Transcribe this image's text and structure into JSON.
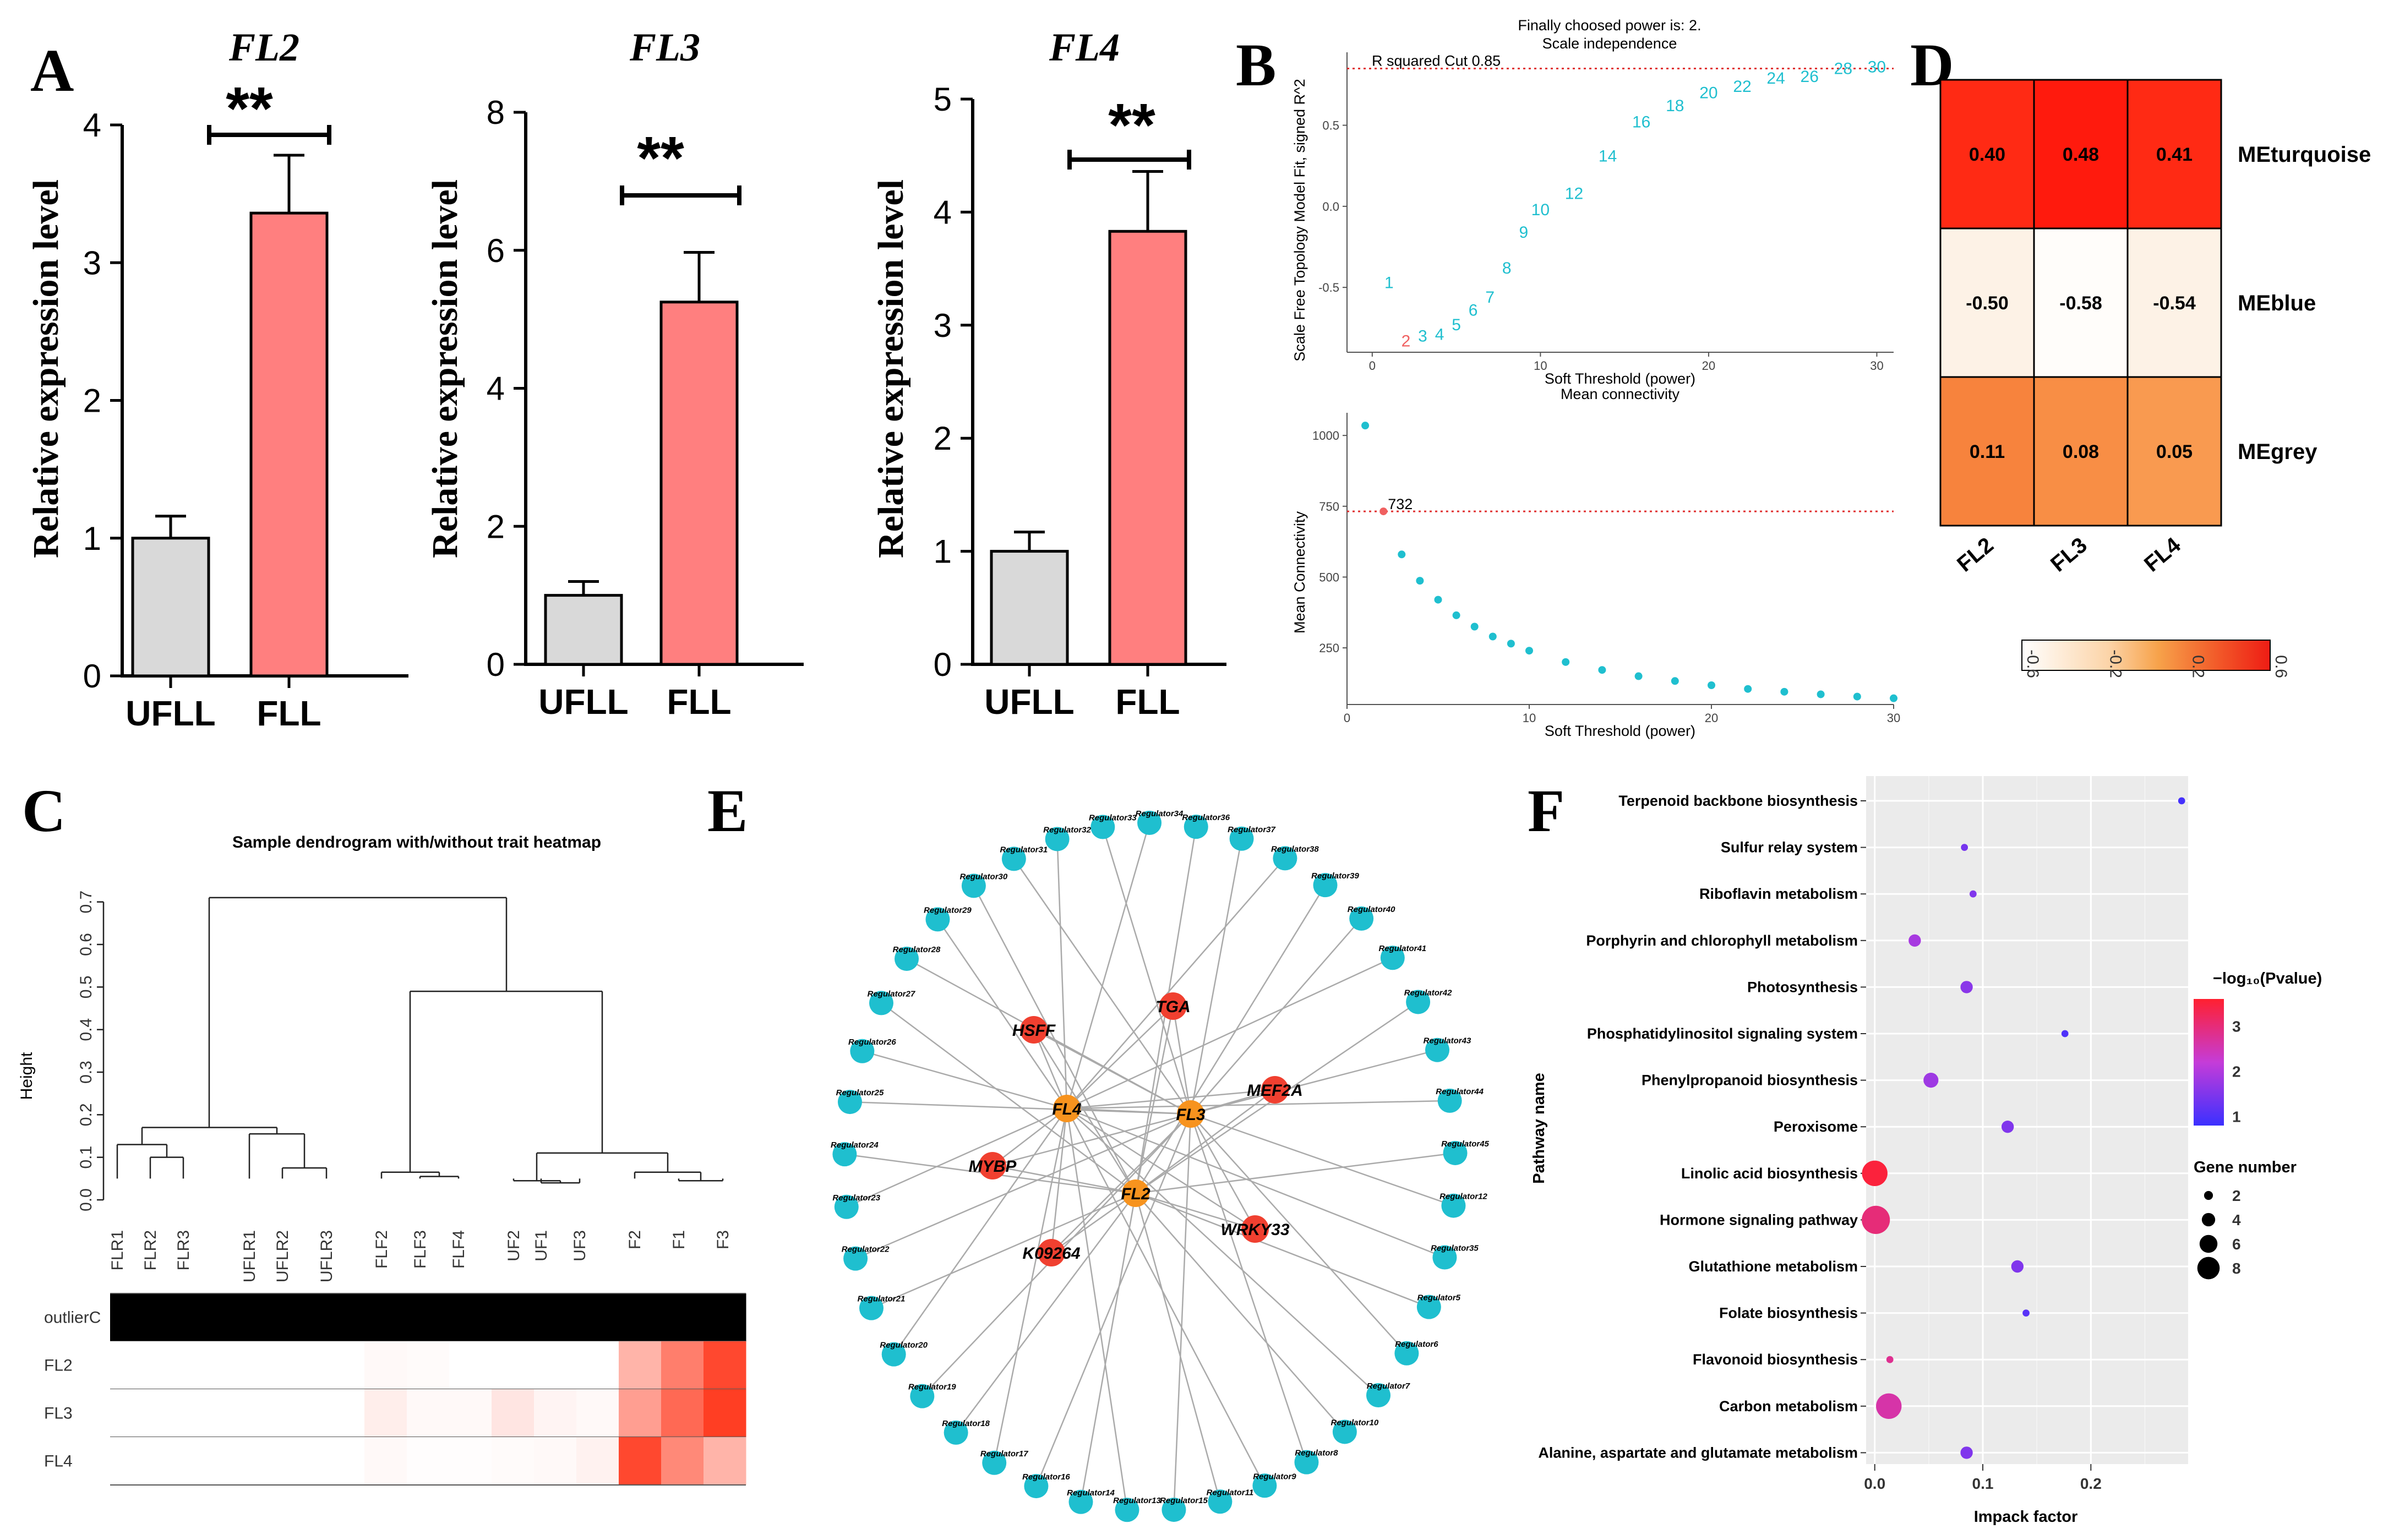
{
  "panels": {
    "A": "A",
    "B": "B",
    "C": "C",
    "D": "D",
    "E": "E",
    "F": "F"
  },
  "colors": {
    "ufll": "#d9d9d9",
    "fll": "#ff7f7f",
    "teal": "#1fbfcf",
    "hub_red": "#f04030",
    "hub_orange": "#f7931e",
    "edge": "#aaaaaa"
  },
  "panel_a": {
    "ylabel": "Relative expression level",
    "significance": "**",
    "charts": [
      {
        "title": "FL2",
        "type": "bar",
        "categories": [
          "UFLL",
          "FLL"
        ],
        "values": [
          1.0,
          3.36
        ],
        "errors": [
          0.16,
          0.42
        ],
        "ylim": [
          0,
          4
        ],
        "yticks": [
          "0",
          "1",
          "2",
          "3",
          "4"
        ]
      },
      {
        "title": "FL3",
        "type": "bar",
        "categories": [
          "UFLL",
          "FLL"
        ],
        "values": [
          1.0,
          5.25
        ],
        "errors": [
          0.2,
          0.72
        ],
        "ylim": [
          0,
          8
        ],
        "yticks": [
          "0",
          "2",
          "4",
          "6",
          "8"
        ]
      },
      {
        "title": "FL4",
        "type": "bar",
        "categories": [
          "UFLL",
          "FLL"
        ],
        "values": [
          1.0,
          3.83
        ],
        "errors": [
          0.17,
          0.53
        ],
        "ylim": [
          0,
          5
        ],
        "yticks": [
          "0",
          "1",
          "2",
          "3",
          "4",
          "5"
        ]
      }
    ]
  },
  "chart_data": [
    {
      "type": "scatter",
      "title": "Finally choosed power is: 2.",
      "subtitle": "Scale independence",
      "xlabel": "Soft Threshold (power)",
      "ylabel": "Scale Free Topology Model Fit, signed R^2",
      "xlim": [
        -1.5,
        31
      ],
      "ylim": [
        -0.9,
        0.95
      ],
      "xticks": [
        "0",
        "10",
        "20",
        "30"
      ],
      "yticks": [
        "-0.5",
        "0.0",
        "0.5"
      ],
      "cutoff": 0.85,
      "cutoff_label": "R squared Cut 0.85",
      "chosen": 2,
      "points": [
        {
          "x": 1,
          "y": -0.47
        },
        {
          "x": 2,
          "y": -0.83
        },
        {
          "x": 3,
          "y": -0.8
        },
        {
          "x": 4,
          "y": -0.79
        },
        {
          "x": 5,
          "y": -0.73
        },
        {
          "x": 6,
          "y": -0.64
        },
        {
          "x": 7,
          "y": -0.56
        },
        {
          "x": 8,
          "y": -0.38
        },
        {
          "x": 9,
          "y": -0.16
        },
        {
          "x": 10,
          "y": -0.02
        },
        {
          "x": 12,
          "y": 0.08
        },
        {
          "x": 14,
          "y": 0.31
        },
        {
          "x": 16,
          "y": 0.52
        },
        {
          "x": 18,
          "y": 0.62
        },
        {
          "x": 20,
          "y": 0.7
        },
        {
          "x": 22,
          "y": 0.74
        },
        {
          "x": 24,
          "y": 0.79
        },
        {
          "x": 26,
          "y": 0.8
        },
        {
          "x": 28,
          "y": 0.85
        },
        {
          "x": 30,
          "y": 0.86
        }
      ]
    },
    {
      "type": "scatter",
      "title": "Mean connectivity",
      "xlabel": "Soft Threshold (power)",
      "ylabel": "Mean Connectivity",
      "xlim": [
        0,
        30
      ],
      "ylim": [
        50,
        1080
      ],
      "xticks": [
        "0",
        "10",
        "20",
        "30"
      ],
      "yticks": [
        "250",
        "500",
        "750",
        "1000"
      ],
      "cutoff": 732,
      "cutoff_label": "732",
      "points": [
        {
          "x": 1,
          "y": 1035
        },
        {
          "x": 2,
          "y": 732
        },
        {
          "x": 3,
          "y": 580
        },
        {
          "x": 4,
          "y": 487
        },
        {
          "x": 5,
          "y": 420
        },
        {
          "x": 6,
          "y": 365
        },
        {
          "x": 7,
          "y": 325
        },
        {
          "x": 8,
          "y": 290
        },
        {
          "x": 9,
          "y": 265
        },
        {
          "x": 10,
          "y": 240
        },
        {
          "x": 12,
          "y": 200
        },
        {
          "x": 14,
          "y": 172
        },
        {
          "x": 16,
          "y": 150
        },
        {
          "x": 18,
          "y": 133
        },
        {
          "x": 20,
          "y": 118
        },
        {
          "x": 22,
          "y": 105
        },
        {
          "x": 24,
          "y": 95
        },
        {
          "x": 26,
          "y": 86
        },
        {
          "x": 28,
          "y": 78
        },
        {
          "x": 30,
          "y": 72
        }
      ]
    },
    {
      "type": "heatmap",
      "rows": [
        "MEturquoise",
        "MEblue",
        "MEgrey"
      ],
      "columns": [
        "FL2",
        "FL3",
        "FL4"
      ],
      "values": [
        [
          0.4,
          0.48,
          0.41
        ],
        [
          -0.5,
          -0.58,
          -0.54
        ],
        [
          0.11,
          0.08,
          0.05
        ]
      ],
      "labels": [
        [
          "0.40",
          "0.48",
          "0.41"
        ],
        [
          "-0.50",
          "-0.58",
          "-0.54"
        ],
        [
          "0.11",
          "0.08",
          "0.05"
        ]
      ],
      "colorbar_ticks": [
        "-0.6",
        "-0.2",
        "0.2",
        "0.6"
      ]
    },
    {
      "type": "scatter",
      "xlabel": "Impack factor",
      "ylabel": "Pathway name",
      "xticks": [
        "0.0",
        "0.1",
        "0.2"
      ],
      "xlim": [
        -0.008,
        0.29
      ],
      "legend_color_title": "−log₁₀(Pvalue)",
      "legend_color_ticks": [
        "1",
        "2",
        "3"
      ],
      "legend_size_title": "Gene number",
      "legend_size_ticks": [
        "2",
        "4",
        "6",
        "8"
      ],
      "points": [
        {
          "pathway": "Terpenoid backbone biosynthesis",
          "x": 0.284,
          "genes": 1,
          "logp": 0.9
        },
        {
          "pathway": "Sulfur relay system",
          "x": 0.083,
          "genes": 1,
          "logp": 1.4
        },
        {
          "pathway": "Riboflavin metabolism",
          "x": 0.091,
          "genes": 1,
          "logp": 1.5
        },
        {
          "pathway": "Porphyrin and chlorophyll metabolism",
          "x": 0.037,
          "genes": 3,
          "logp": 1.9
        },
        {
          "pathway": "Photosynthesis",
          "x": 0.085,
          "genes": 3,
          "logp": 1.6
        },
        {
          "pathway": "Phosphatidylinositol signaling system",
          "x": 0.176,
          "genes": 1,
          "logp": 1.0
        },
        {
          "pathway": "Phenylpropanoid biosynthesis",
          "x": 0.052,
          "genes": 4,
          "logp": 1.8
        },
        {
          "pathway": "Peroxisome",
          "x": 0.123,
          "genes": 3,
          "logp": 1.5
        },
        {
          "pathway": "Linolic acid biosynthesis",
          "x": 0.0,
          "genes": 8,
          "logp": 3.5
        },
        {
          "pathway": "Hormone signaling pathway",
          "x": 0.001,
          "genes": 9,
          "logp": 3.0
        },
        {
          "pathway": "Glutathione metabolism",
          "x": 0.132,
          "genes": 3,
          "logp": 1.5
        },
        {
          "pathway": "Folate biosynthesis",
          "x": 0.14,
          "genes": 1,
          "logp": 1.1
        },
        {
          "pathway": "Flavonoid biosynthesis",
          "x": 0.014,
          "genes": 1,
          "logp": 2.8
        },
        {
          "pathway": "Carbon metabolism",
          "x": 0.013,
          "genes": 8,
          "logp": 2.6
        },
        {
          "pathway": "Alanine, aspartate and glutamate metabolism",
          "x": 0.085,
          "genes": 3,
          "logp": 1.5
        }
      ]
    }
  ],
  "panel_c": {
    "title": "Sample dendrogram with/without trait heatmap",
    "ylabel": "Height",
    "yticks": [
      "0.0",
      "0.1",
      "0.2",
      "0.3",
      "0.4",
      "0.5",
      "0.6",
      "0.7"
    ],
    "samples": [
      "FLR1",
      "FLR2",
      "FLR3",
      "UFLR1",
      "UFLR2",
      "UFLR3",
      "FLF2",
      "FLF3",
      "FLF4",
      "UF2",
      "UF1",
      "UF3",
      "F2",
      "F1",
      "F3"
    ],
    "trait_rows": [
      "outlierC",
      "FL2",
      "FL3",
      "FL4"
    ],
    "trait_values": [
      [
        1,
        1,
        1,
        1,
        1,
        1,
        1,
        1,
        1,
        1,
        1,
        1,
        1,
        1,
        1
      ],
      [
        0,
        0,
        0,
        0,
        0,
        0,
        0.03,
        0.02,
        0,
        0,
        0,
        0,
        0.35,
        0.6,
        0.85
      ],
      [
        0,
        0,
        0,
        0,
        0,
        0,
        0.08,
        0.03,
        0.03,
        0.12,
        0.05,
        0.03,
        0.45,
        0.7,
        0.9
      ],
      [
        0,
        0,
        0,
        0,
        0,
        0,
        0.03,
        0.01,
        0.01,
        0.02,
        0.03,
        0.06,
        0.85,
        0.55,
        0.35
      ]
    ]
  },
  "panel_e": {
    "hubs": [
      {
        "label": "FL3",
        "color": "orange"
      },
      {
        "label": "FL4",
        "color": "orange"
      },
      {
        "label": "FL2",
        "color": "orange"
      },
      {
        "label": "TGA",
        "color": "red"
      },
      {
        "label": "HSFF",
        "color": "red"
      },
      {
        "label": "MEF2A",
        "color": "red"
      },
      {
        "label": "MYBP",
        "color": "red"
      },
      {
        "label": "WRKY33",
        "color": "red"
      },
      {
        "label": "K09264",
        "color": "red"
      }
    ],
    "regulators": [
      "Regulator33",
      "Regulator34",
      "Regulator36",
      "Regulator37",
      "Regulator38",
      "Regulator39",
      "Regulator40",
      "Regulator41",
      "Regulator42",
      "Regulator43",
      "Regulator44",
      "Regulator45",
      "Regulator12",
      "Regulator35",
      "Regulator5",
      "Regulator6",
      "Regulator7",
      "Regulator10",
      "Regulator8",
      "Regulator9",
      "Regulator11",
      "Regulator15",
      "Regulator13",
      "Regulator14",
      "Regulator16",
      "Regulator17",
      "Regulator18",
      "Regulator19",
      "Regulator20",
      "Regulator21",
      "Regulator22",
      "Regulator23",
      "Regulator24",
      "Regulator25",
      "Regulator26",
      "Regulator27",
      "Regulator28",
      "Regulator29",
      "Regulator30",
      "Regulator31",
      "Regulator32"
    ]
  }
}
